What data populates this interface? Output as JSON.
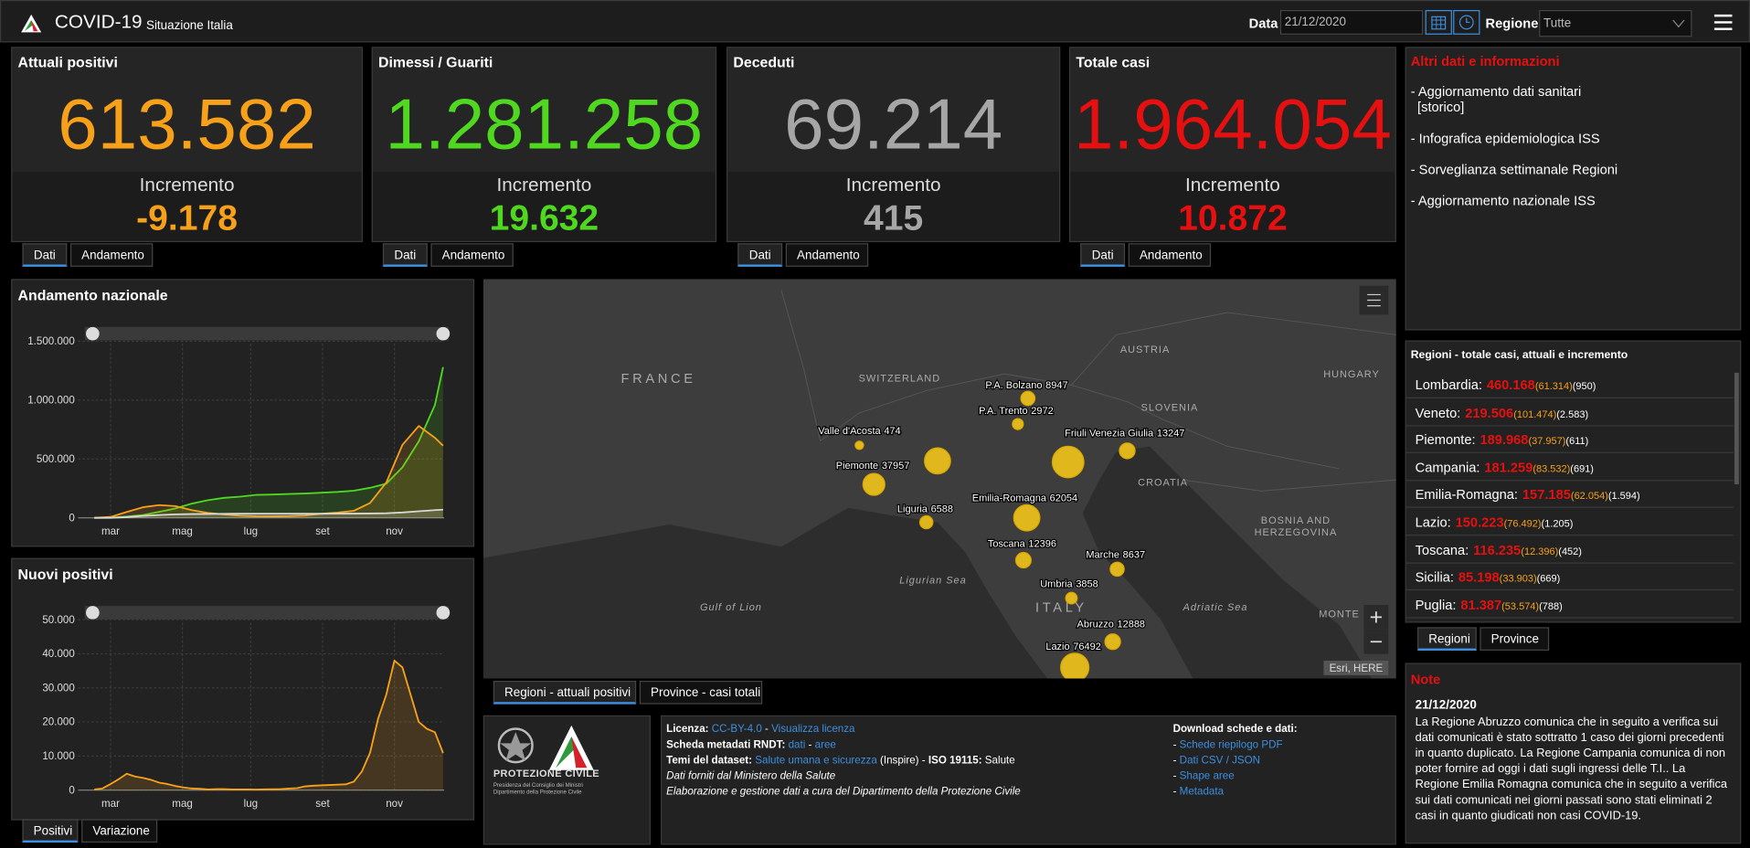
{
  "header": {
    "title": "COVID-19",
    "subtitle": "Situazione Italia",
    "date_label": "Data",
    "date": "21/12/2020",
    "region_label": "Regione",
    "region": "Tutte"
  },
  "cards": [
    {
      "title": "Attuali positivi",
      "value": "613.582",
      "increment_label": "Incremento",
      "increment": "-9.178",
      "color": "#f7a11a"
    },
    {
      "title": "Dimessi / Guariti",
      "value": "1.281.258",
      "increment_label": "Incremento",
      "increment": "19.632",
      "color": "#4fd81f"
    },
    {
      "title": "Deceduti",
      "value": "69.214",
      "increment_label": "Incremento",
      "increment": "415",
      "color": "#a6a6a6"
    },
    {
      "title": "Totale casi",
      "value": "1.964.054",
      "increment_label": "Incremento",
      "increment": "10.872",
      "color": "#e5100f"
    }
  ],
  "card_tabs": [
    "Dati",
    "Andamento"
  ],
  "info": {
    "title": "Altri dati e informazioni",
    "links": [
      [
        "- Aggiornamento dati sanitari",
        "[storico]"
      ],
      [
        "- Infografica epidemiologica ISS"
      ],
      [
        "- Sorveglianza settimanale Regioni"
      ],
      [
        "- Aggiornamento nazionale ISS"
      ]
    ]
  },
  "charts": [
    {
      "type": "line",
      "title": "Andamento nazionale",
      "grid": true,
      "x": [
        0,
        14,
        28,
        42,
        56,
        70,
        84,
        98,
        112,
        126,
        140,
        154,
        168,
        182,
        196,
        210,
        224,
        238,
        252,
        266,
        280,
        294,
        301
      ],
      "xlim": [
        -14,
        302
      ],
      "xticks": [
        {
          "value": 14,
          "label": "mar"
        },
        {
          "value": 76,
          "label": "mag"
        },
        {
          "value": 135,
          "label": "lug"
        },
        {
          "value": 197,
          "label": "set"
        },
        {
          "value": 259,
          "label": "nov"
        }
      ],
      "ylim": [
        0,
        1650000
      ],
      "yticks": [
        0,
        {
          "value": 500000,
          "label": "500.000"
        },
        {
          "value": 1000000,
          "label": "1.000.000"
        },
        {
          "value": 1500000,
          "label": "1.500.000"
        }
      ],
      "series": [
        {
          "color": "#4fd81f",
          "values": [
            0,
            700,
            10000,
            24000,
            51000,
            80000,
            120000,
            150000,
            170000,
            180000,
            195000,
            198000,
            203000,
            207000,
            213000,
            220000,
            230000,
            255000,
            290000,
            430000,
            650000,
            960000,
            1281258
          ]
        },
        {
          "color": "#f7a11a",
          "values": [
            0,
            7500,
            50000,
            90000,
            108000,
            100000,
            65000,
            42000,
            28000,
            18000,
            13000,
            12500,
            14000,
            20000,
            35000,
            45000,
            60000,
            126000,
            300000,
            620000,
            780000,
            680000,
            613582
          ]
        },
        {
          "color": "#d8d8d8",
          "values": [
            0,
            400,
            6000,
            16000,
            24000,
            29000,
            32000,
            33400,
            34400,
            34750,
            34950,
            35100,
            35250,
            35450,
            35550,
            35750,
            36000,
            36700,
            39000,
            45700,
            55500,
            65000,
            69214
          ]
        }
      ]
    },
    {
      "type": "line",
      "title": "Nuovi positivi",
      "grid": true,
      "x": [
        0,
        7,
        14,
        21,
        28,
        35,
        42,
        49,
        56,
        63,
        70,
        77,
        84,
        91,
        98,
        105,
        112,
        119,
        126,
        133,
        140,
        147,
        154,
        161,
        168,
        175,
        182,
        189,
        196,
        203,
        210,
        217,
        224,
        231,
        238,
        245,
        252,
        259,
        266,
        273,
        280,
        287,
        294,
        301
      ],
      "xlim": [
        -14,
        302
      ],
      "xticks": [
        {
          "value": 14,
          "label": "mar"
        },
        {
          "value": 76,
          "label": "mag"
        },
        {
          "value": 135,
          "label": "lug"
        },
        {
          "value": 197,
          "label": "set"
        },
        {
          "value": 259,
          "label": "nov"
        }
      ],
      "ylim": [
        0,
        55000
      ],
      "yticks": [
        0,
        {
          "value": 10000,
          "label": "10.000"
        },
        {
          "value": 20000,
          "label": "20.000"
        },
        {
          "value": 30000,
          "label": "30.000"
        },
        {
          "value": 40000,
          "label": "40.000"
        },
        {
          "value": 50000,
          "label": "50.000"
        }
      ],
      "series": [
        {
          "color": "#f7a11a",
          "values": [
            200,
            500,
            1800,
            3200,
            4800,
            4000,
            3600,
            3000,
            2200,
            1800,
            1200,
            800,
            500,
            400,
            200,
            280,
            300,
            200,
            190,
            200,
            170,
            220,
            250,
            300,
            450,
            600,
            1100,
            1300,
            1400,
            1500,
            1600,
            1700,
            2500,
            5500,
            11000,
            21000,
            28000,
            38000,
            36000,
            28000,
            20000,
            18000,
            17000,
            10872
          ]
        }
      ]
    }
  ],
  "chart_tabs": [
    "Positivi",
    "Variazione"
  ],
  "map": {
    "points": [
      {
        "name": "P.A. Bolzano",
        "value": 8947
      },
      {
        "name": "P.A. Trento",
        "value": 2972
      },
      {
        "name": "Valle d'Acosta",
        "value": 474
      },
      {
        "name": "Friuli Venezia Giulia",
        "value": 13247
      },
      {
        "name": "Piemonte",
        "value": 37957
      },
      {
        "name": null,
        "value": 61314
      },
      {
        "name": null,
        "value": 101474
      },
      {
        "name": "Emilia-Romagna",
        "value": 62054
      },
      {
        "name": "Liguria",
        "value": 6588
      },
      {
        "name": "Toscana",
        "value": 12396
      },
      {
        "name": "Marche",
        "value": 8637
      },
      {
        "name": "Umbria",
        "value": 3858
      },
      {
        "name": "Abruzzo",
        "value": 12888
      },
      {
        "name": "Lazio",
        "value": 76492
      }
    ],
    "places": [
      [
        "FRANCE"
      ],
      [
        "SWITZERLAND"
      ],
      [
        "AUSTRIA"
      ],
      [
        "HUNGARY"
      ],
      [
        "SLOVENIA"
      ],
      [
        "CROATIA"
      ],
      [
        "BOSNIA AND",
        "HERZEGOVINA"
      ],
      [
        "ITALY"
      ],
      [
        "Ligurian Sea"
      ],
      [
        "Gulf of Lion"
      ],
      [
        "Adriatic Sea"
      ],
      [
        "MONTE"
      ]
    ],
    "attribution": "Esri, HERE",
    "tabs": [
      "Regioni - attuali positivi",
      "Province - casi totali"
    ]
  },
  "regions": {
    "title": "Regioni - totale casi, attuali e incremento",
    "rows": [
      [
        "Lombardia:",
        "460.168",
        "(61.314)",
        "(950)"
      ],
      [
        "Veneto:",
        "219.506",
        "(101.474)",
        "(2.583)"
      ],
      [
        "Piemonte:",
        "189.968",
        "(37.957)",
        "(611)"
      ],
      [
        "Campania:",
        "181.259",
        "(83.532)",
        "(691)"
      ],
      [
        "Emilia-Romagna:",
        "157.185",
        "(62.054)",
        "(1.594)"
      ],
      [
        "Lazio:",
        "150.223",
        "(76.492)",
        "(1.205)"
      ],
      [
        "Toscana:",
        "116.235",
        "(12.396)",
        "(452)"
      ],
      [
        "Sicilia:",
        "85.198",
        "(33.903)",
        "(669)"
      ],
      [
        "Puglia:",
        "81.387",
        "(53.574)",
        "(788)"
      ]
    ],
    "tabs": [
      "Regioni",
      "Province"
    ]
  },
  "note": {
    "title": "Note",
    "date": "21/12/2020",
    "text": "La Regione Abruzzo comunica che in seguito a verifica sui dati comunicati è stato sottratto 1 caso dei giorni precedenti in quanto duplicato. La Regione Campania comunica di non poter fornire ad oggi i dati sugli ingressi delle T.I.. La Regione Emilia Romagna comunica che in seguito a verifica sui dati comunicati nei giorni passati sono stati eliminati 2 casi in quanto giudicati non casi COVID-19."
  },
  "logo": {
    "name": "PROTEZIONE CIVILE",
    "line1": "Presidenza del Consiglio dei Ministri",
    "line2": "Dipartimento della Protezione Civile"
  },
  "footer": {
    "lines": [
      [
        {
          "text": "Licenza: ",
          "style": "bold"
        },
        {
          "text": "CC-BY-4.0",
          "style": "link"
        },
        {
          "text": " - ",
          "style": "plain"
        },
        {
          "text": "Visualizza licenza",
          "style": "link"
        }
      ],
      [
        {
          "text": "Scheda metadati RNDT: ",
          "style": "bold"
        },
        {
          "text": "dati",
          "style": "link"
        },
        {
          "text": " - ",
          "style": "plain"
        },
        {
          "text": "aree",
          "style": "link"
        }
      ],
      [
        {
          "text": "Temi del dataset: ",
          "style": "bold"
        },
        {
          "text": "Salute umana e sicurezza",
          "style": "link"
        },
        {
          "text": " (Inspire) - ",
          "style": "plain"
        },
        {
          "text": "ISO 19115: ",
          "style": "bold"
        },
        {
          "text": "Salute",
          "style": "plain"
        }
      ],
      [
        {
          "text": "Dati forniti dal Ministero della Salute",
          "style": "italic"
        }
      ],
      [
        {
          "text": "Elaborazione e gestione dati a cura del Dipartimento della Protezione Civile",
          "style": "italic"
        }
      ]
    ],
    "download": [
      [
        {
          "text": "Download schede e dati:",
          "style": "bold"
        }
      ],
      [
        {
          "text": "- ",
          "style": "plain"
        },
        {
          "text": "Schede riepilogo PDF",
          "style": "link"
        }
      ],
      [
        {
          "text": "- ",
          "style": "plain"
        },
        {
          "text": "Dati CSV / JSON",
          "style": "link"
        }
      ],
      [
        {
          "text": "- ",
          "style": "plain"
        },
        {
          "text": "Shape aree",
          "style": "link"
        }
      ],
      [
        {
          "text": "- ",
          "style": "plain"
        },
        {
          "text": "Metadata",
          "style": "link"
        }
      ]
    ]
  }
}
